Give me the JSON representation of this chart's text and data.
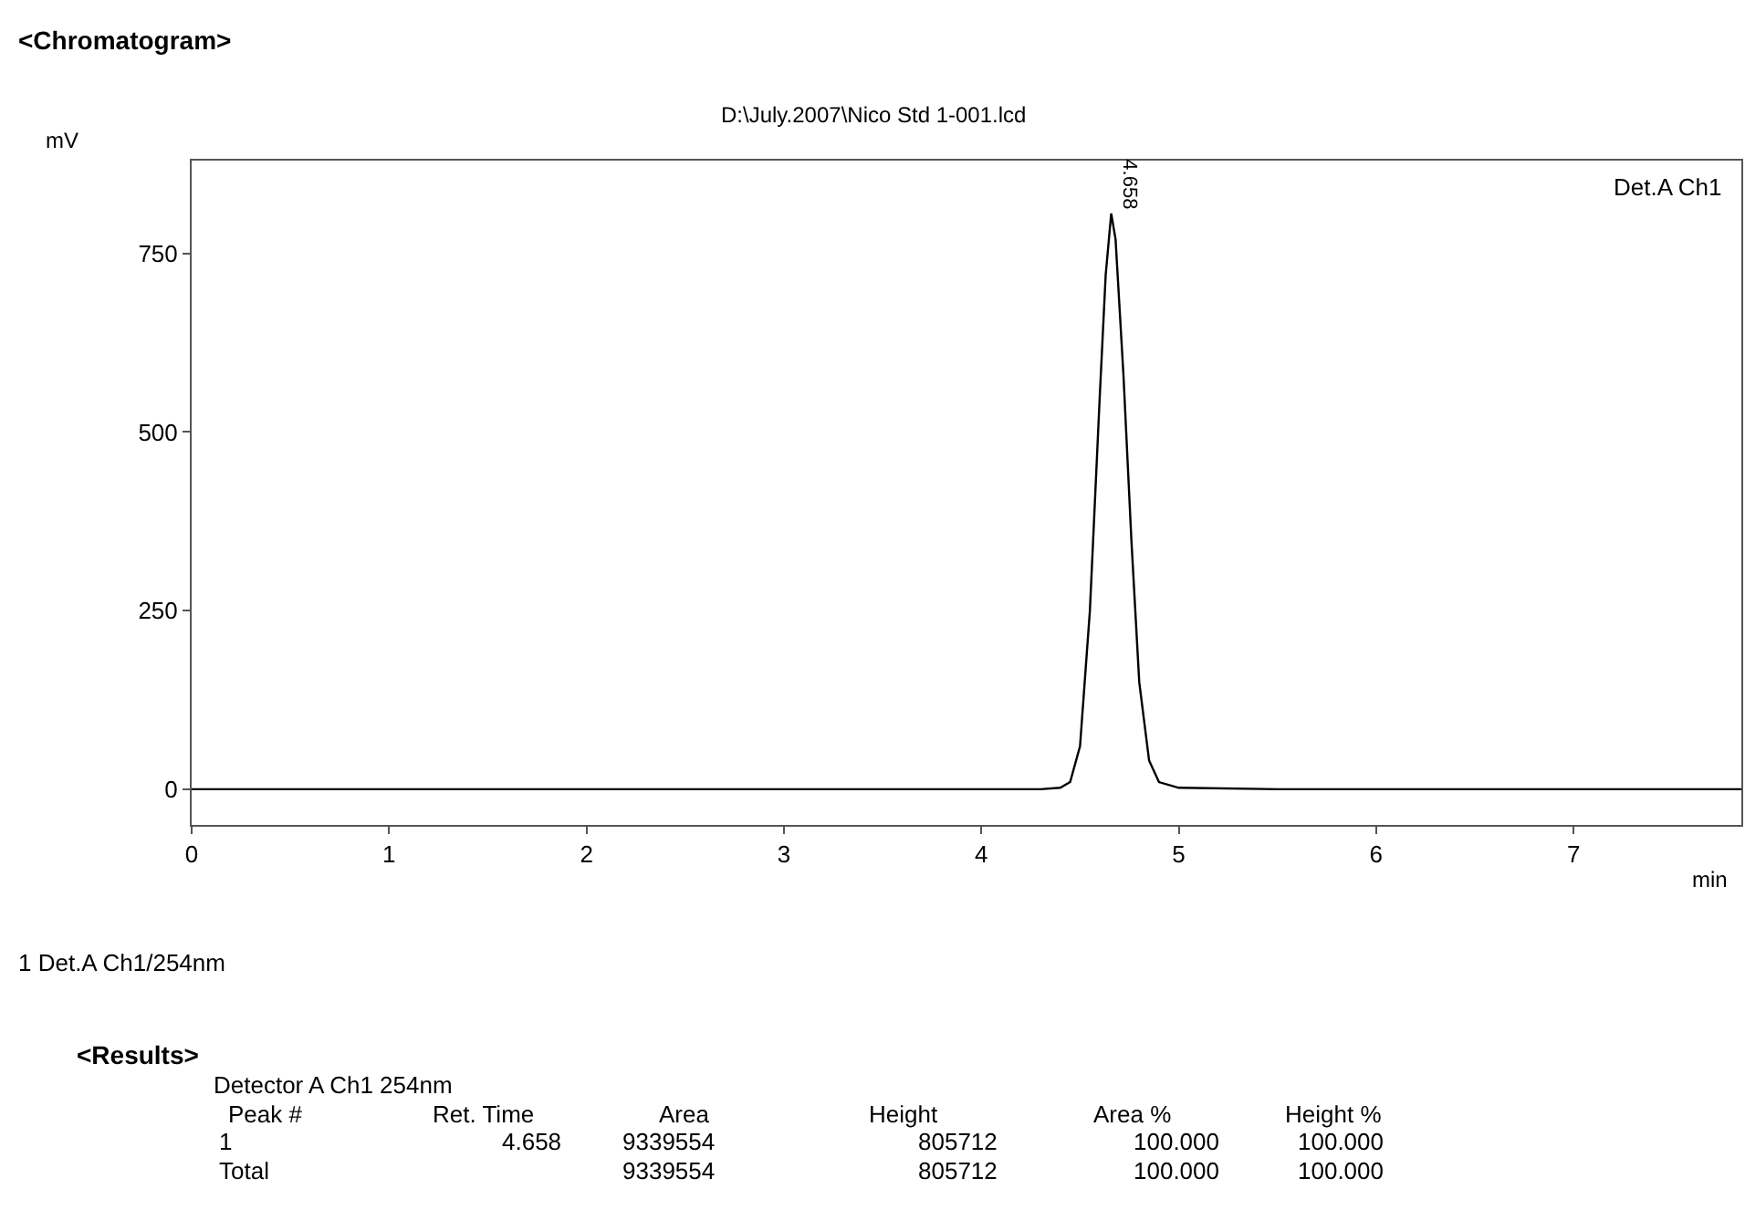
{
  "chart_data": {
    "type": "line",
    "title": "<Chromatogram>",
    "subtitle": "D:\\July.2007\\Nico Std 1-001.lcd",
    "xlabel": "min",
    "ylabel": "mV",
    "x": [
      0,
      0.5,
      1,
      1.5,
      2,
      2.5,
      3,
      3.5,
      4,
      4.3,
      4.4,
      4.45,
      4.5,
      4.55,
      4.6,
      4.63,
      4.658,
      4.68,
      4.72,
      4.76,
      4.8,
      4.85,
      4.9,
      5,
      5.5,
      6,
      6.5,
      7,
      7.5,
      7.85
    ],
    "series": [
      {
        "color": "#000000",
        "values": [
          0,
          0,
          0,
          0,
          0,
          0,
          0,
          0,
          0,
          0,
          2,
          10,
          60,
          250,
          550,
          720,
          806,
          770,
          580,
          350,
          150,
          40,
          10,
          2,
          0,
          0,
          0,
          0,
          0,
          0
        ]
      }
    ],
    "xlim": [
      0,
      7.85
    ],
    "ylim": [
      -50,
      880
    ],
    "xticks": [
      0,
      1,
      2,
      3,
      4,
      5,
      6,
      7
    ],
    "yticks": [
      0,
      250,
      500,
      750
    ],
    "marker": "none",
    "line_style": "solid",
    "annotations": [
      {
        "text": "4.658",
        "x": 4.658,
        "y": 806
      },
      "Det.A Ch1",
      "1 Det.A Ch1/254nm",
      "<Results>",
      "Detector A Ch1 254nm",
      "Peak #",
      "Ret. Time",
      "Area",
      "Height",
      "Area %",
      "Height %",
      "1",
      "4.658",
      "9339554",
      "805712",
      "100.000",
      "100.000",
      "Total",
      "9339554",
      "805712",
      "100.000",
      "100.000"
    ]
  }
}
